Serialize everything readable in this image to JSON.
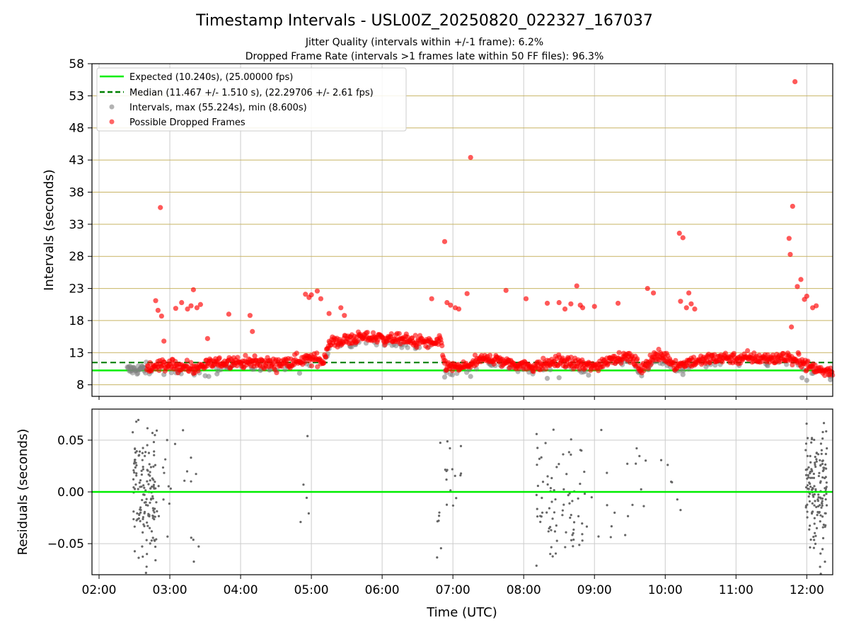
{
  "figure": {
    "title": "Timestamp Intervals - USL00Z_20250820_022327_167037",
    "subtitle_1": "Jitter Quality (intervals within +/-1 frame): 6.2%",
    "subtitle_2": "Dropped Frame Rate (intervals >1 frames late within 50 FF files): 96.3%"
  },
  "colors": {
    "expected": "#00ee00",
    "median": "#008000",
    "intervals": "#808080",
    "dropped": "#ff0000",
    "hgrid_top": "#c8b464",
    "grid": "#cccccc"
  },
  "chart_data": [
    {
      "type": "scatter",
      "title": "Timestamp Intervals - USL00Z_20250820_022327_167037",
      "xlabel": "",
      "ylabel": "Intervals (seconds)",
      "xlim": [
        "01:54",
        "12:22"
      ],
      "ylim": [
        6.2,
        58
      ],
      "yticks": [
        8,
        13,
        18,
        23,
        28,
        33,
        38,
        43,
        48,
        53,
        58
      ],
      "ytick_labels": [
        "8",
        "13",
        "18",
        "23",
        "28",
        "33",
        "38",
        "43",
        "48",
        "53",
        "58"
      ],
      "grid": true,
      "legend_position": "top-left",
      "legend": [
        "Expected (10.240s), (25.00000 fps)",
        "Median (11.467 +/- 1.510 s), (22.29706 +/- 2.61 fps)",
        "Intervals, max (55.224s), min (8.600s)",
        "Possible Dropped Frames"
      ],
      "expected_interval": 10.24,
      "median_interval": 11.467,
      "trend": {
        "x": [
          "02:24",
          "02:40",
          "02:50",
          "03:00",
          "03:20",
          "03:30",
          "03:50",
          "04:10",
          "04:30",
          "04:50",
          "05:05",
          "05:10",
          "05:15",
          "05:30",
          "05:45",
          "06:00",
          "06:15",
          "06:30",
          "06:45",
          "06:50",
          "06:53",
          "07:00",
          "07:10",
          "07:20",
          "07:30",
          "07:50",
          "08:10",
          "08:30",
          "08:45",
          "09:00",
          "09:15",
          "09:30",
          "09:40",
          "09:50",
          "10:00",
          "10:10",
          "10:20",
          "10:30",
          "10:45",
          "11:00",
          "11:20",
          "11:40",
          "11:45",
          "11:50",
          "11:55",
          "12:00",
          "12:10",
          "12:22"
        ],
        "y": [
          10.3,
          10.5,
          11.0,
          11.1,
          10.6,
          11.1,
          11.6,
          11.4,
          11.2,
          11.9,
          12.0,
          11.6,
          14.5,
          15.0,
          15.4,
          15.3,
          15.0,
          14.8,
          14.4,
          14.6,
          11.0,
          10.6,
          10.8,
          11.6,
          12.2,
          11.3,
          10.8,
          11.8,
          11.2,
          10.8,
          12.2,
          12.3,
          10.4,
          12.3,
          12.4,
          10.9,
          11.6,
          11.7,
          12.3,
          12.2,
          12.1,
          12.2,
          12.4,
          11.6,
          12.0,
          10.9,
          10.3,
          10.2
        ]
      },
      "outliers": {
        "x": [
          "02:52",
          "02:48",
          "02:50",
          "02:53",
          "02:55",
          "03:05",
          "03:10",
          "03:15",
          "03:18",
          "03:20",
          "03:23",
          "03:26",
          "03:32",
          "03:50",
          "04:08",
          "04:10",
          "04:12",
          "04:55",
          "04:58",
          "05:00",
          "05:05",
          "05:08",
          "05:15",
          "05:25",
          "05:28",
          "06:42",
          "06:53",
          "06:55",
          "06:58",
          "07:02",
          "07:05",
          "07:12",
          "07:15",
          "07:45",
          "08:02",
          "08:20",
          "08:30",
          "08:35",
          "08:40",
          "08:45",
          "08:48",
          "08:50",
          "09:00",
          "09:20",
          "09:45",
          "09:50",
          "10:12",
          "10:13",
          "10:15",
          "10:18",
          "10:20",
          "10:22",
          "10:25",
          "11:45",
          "11:46",
          "11:47",
          "11:48",
          "11:50",
          "11:52",
          "11:55",
          "11:58",
          "12:00",
          "12:05",
          "12:08"
        ],
        "y": [
          35.6,
          21.1,
          19.6,
          18.7,
          14.8,
          19.9,
          20.8,
          19.8,
          20.3,
          22.8,
          20.0,
          20.5,
          15.2,
          19.0,
          18.8,
          16.3,
          12.5,
          22.1,
          21.6,
          22.0,
          22.6,
          21.4,
          19.1,
          20.0,
          18.8,
          21.4,
          30.3,
          20.8,
          20.4,
          20.0,
          19.8,
          22.2,
          43.4,
          22.7,
          21.4,
          20.7,
          20.8,
          19.8,
          20.6,
          23.4,
          20.4,
          20.0,
          20.2,
          20.7,
          23.0,
          22.3,
          31.6,
          21.0,
          30.9,
          20.0,
          22.3,
          20.6,
          19.8,
          30.8,
          28.3,
          17.0,
          35.8,
          55.2,
          23.3,
          24.4,
          21.3,
          21.8,
          20.0,
          20.3
        ]
      },
      "lower_outliers": {
        "x": [
          "02:55",
          "03:30",
          "03:33",
          "03:40",
          "04:50",
          "06:53",
          "07:15",
          "08:20",
          "08:30",
          "08:55",
          "09:40",
          "10:15",
          "11:56",
          "12:00",
          "12:20"
        ],
        "y": [
          9.6,
          9.4,
          9.3,
          9.7,
          9.8,
          9.2,
          9.3,
          9.0,
          9.1,
          9.5,
          9.4,
          9.6,
          9.1,
          8.7,
          8.8
        ]
      }
    },
    {
      "type": "scatter",
      "title": "",
      "xlabel": "Time (UTC)",
      "ylabel": "Residuals (seconds)",
      "xlim": [
        "01:54",
        "12:22"
      ],
      "ylim": [
        -0.08,
        0.08
      ],
      "xticks": [
        "02:00",
        "03:00",
        "04:00",
        "05:00",
        "06:00",
        "07:00",
        "08:00",
        "09:00",
        "10:00",
        "11:00",
        "12:00"
      ],
      "yticks": [
        -0.05,
        0.0,
        0.05
      ],
      "ytick_labels": [
        "−0.05",
        "0.00",
        "0.05"
      ],
      "grid": true,
      "clusters": [
        {
          "center": "02:38",
          "spread_min": 10,
          "count": 140
        },
        {
          "center": "03:05",
          "spread_min": 20,
          "count": 28
        },
        {
          "center": "04:55",
          "spread_min": 6,
          "count": 5
        },
        {
          "center": "06:58",
          "spread_min": 12,
          "count": 22
        },
        {
          "center": "08:32",
          "spread_min": 22,
          "count": 80
        },
        {
          "center": "09:20",
          "spread_min": 25,
          "count": 18
        },
        {
          "center": "10:05",
          "spread_min": 10,
          "count": 6
        },
        {
          "center": "12:08",
          "spread_min": 9,
          "count": 160
        }
      ]
    }
  ]
}
